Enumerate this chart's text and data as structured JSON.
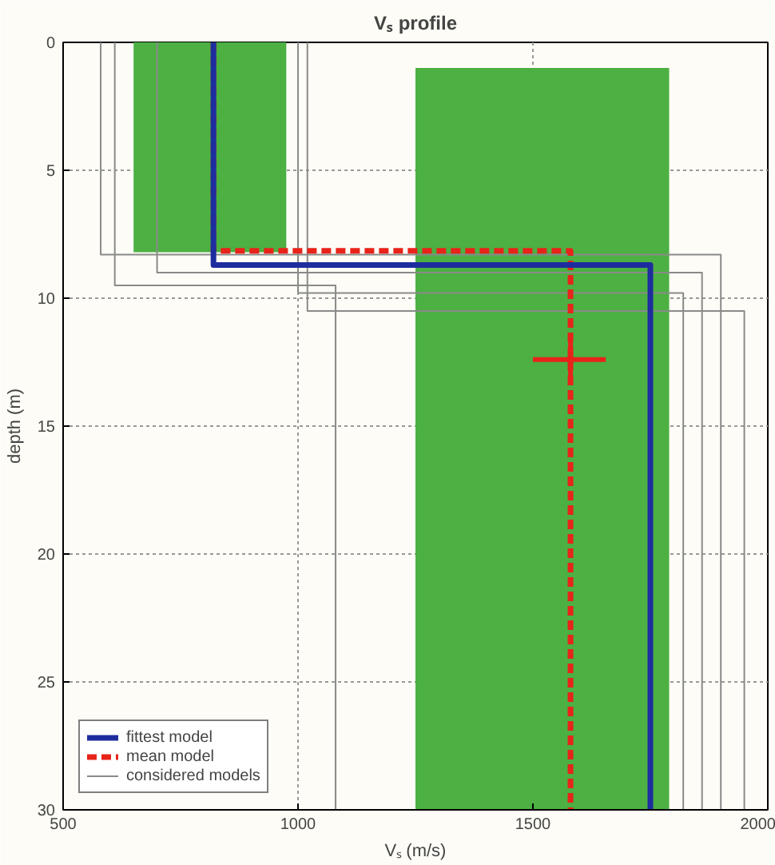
{
  "chart_data": {
    "type": "line",
    "title": "Vₛ profile",
    "xlabel": "Vₛ (m/s)",
    "ylabel": "depth (m)",
    "xlim": [
      500,
      2000
    ],
    "xticks": [
      500,
      1000,
      1500,
      2000
    ],
    "ylim": [
      30,
      0
    ],
    "yticks": [
      0,
      5,
      10,
      15,
      20,
      25,
      30
    ],
    "grid": true,
    "legend": "bottom left",
    "line_style": "solid",
    "series": [
      {
        "type": "area",
        "color": "#4cb043",
        "x": [
          650,
          650,
          975,
          975
        ],
        "values": [
          0,
          8.2,
          8.2,
          0
        ]
      },
      {
        "type": "area",
        "color": "#4cb043",
        "x": [
          1250,
          1250,
          1790,
          1790
        ],
        "values": [
          1,
          30,
          30,
          1
        ]
      },
      {
        "name": "considered models",
        "color": "#8a8a8a",
        "x": [
          580,
          580,
          1900,
          1900
        ],
        "values": [
          0,
          8.3,
          8.3,
          30
        ]
      },
      {
        "color": "#8a8a8a",
        "x": [
          610,
          610,
          1080,
          1080
        ],
        "values": [
          0,
          9.5,
          9.5,
          30
        ]
      },
      {
        "color": "#8a8a8a",
        "x": [
          700,
          700,
          1860,
          1860
        ],
        "values": [
          0,
          9.0,
          9.0,
          30
        ]
      },
      {
        "color": "#8a8a8a",
        "x": [
          1000,
          1000,
          1820,
          1820
        ],
        "values": [
          0,
          9.8,
          9.8,
          30
        ]
      },
      {
        "color": "#8a8a8a",
        "x": [
          1020,
          1020,
          1950,
          1950
        ],
        "values": [
          0,
          10.5,
          10.5,
          30
        ]
      },
      {
        "name": "mean model",
        "color": "#e8231a",
        "line_style": "dashed",
        "x": [
          820,
          820,
          1580,
          1580
        ],
        "values": [
          0,
          8.15,
          8.15,
          30
        ]
      },
      {
        "name": "fittest model",
        "color": "#1e2d9e",
        "x": [
          820,
          820,
          1750,
          1750
        ],
        "values": [
          0,
          8.7,
          8.7,
          30
        ]
      },
      {
        "type": "scatter",
        "color": "#e8231a",
        "x": [
          1580
        ],
        "values": [
          12.4
        ],
        "xerrors": [
          [
            1500,
            1655
          ]
        ],
        "errors": [
          [
            11.7,
            13.1
          ]
        ]
      }
    ]
  }
}
